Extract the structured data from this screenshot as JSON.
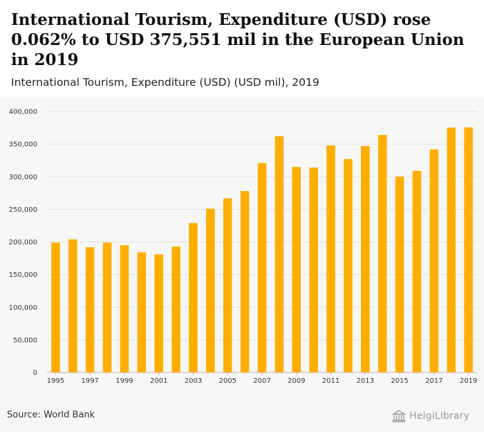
{
  "header": {
    "title": "International Tourism, Expenditure (USD) rose 0.062% to USD 375,551 mil in the European Union in 2019",
    "subtitle": "International Tourism, Expenditure (USD) (USD mil), 2019"
  },
  "footer": {
    "source": "Source: World Bank",
    "logo_text": "HelgiLibrary"
  },
  "colors": {
    "bar": "#FFAD00",
    "grid": "#e2e2e2",
    "axis": "#bbbbbb"
  },
  "chart_data": {
    "type": "bar",
    "title": "International Tourism, Expenditure (USD) (USD mil), 2019",
    "xlabel": "",
    "ylabel": "",
    "ylim": [
      0,
      400000
    ],
    "yticks": [
      0,
      50000,
      100000,
      150000,
      200000,
      250000,
      300000,
      350000,
      400000
    ],
    "ytick_labels": [
      "0",
      "50,000",
      "100,000",
      "150,000",
      "200,000",
      "250,000",
      "300,000",
      "350,000",
      "400,000"
    ],
    "categories": [
      "1995",
      "1996",
      "1997",
      "1998",
      "1999",
      "2000",
      "2001",
      "2002",
      "2003",
      "2004",
      "2005",
      "2006",
      "2007",
      "2008",
      "2009",
      "2010",
      "2011",
      "2012",
      "2013",
      "2014",
      "2015",
      "2016",
      "2017",
      "2018",
      "2019"
    ],
    "xtick_labels": [
      "1995",
      "",
      "1997",
      "",
      "1999",
      "",
      "2001",
      "",
      "2003",
      "",
      "2005",
      "",
      "2007",
      "",
      "2009",
      "",
      "2011",
      "",
      "2013",
      "",
      "2015",
      "",
      "2017",
      "",
      "2019"
    ],
    "values": [
      199000,
      204000,
      192000,
      199000,
      195000,
      184000,
      181000,
      193000,
      229000,
      251000,
      267000,
      278000,
      321000,
      362000,
      315000,
      314000,
      348000,
      327000,
      347000,
      364000,
      300000,
      309000,
      342000,
      375319,
      375551
    ]
  }
}
